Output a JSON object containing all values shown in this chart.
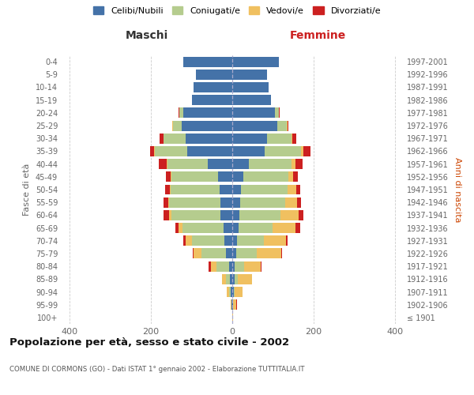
{
  "age_groups": [
    "100+",
    "95-99",
    "90-94",
    "85-89",
    "80-84",
    "75-79",
    "70-74",
    "65-69",
    "60-64",
    "55-59",
    "50-54",
    "45-49",
    "40-44",
    "35-39",
    "30-34",
    "25-29",
    "20-24",
    "15-19",
    "10-14",
    "5-9",
    "0-4"
  ],
  "birth_years": [
    "≤ 1901",
    "1902-1906",
    "1907-1911",
    "1912-1916",
    "1917-1921",
    "1922-1926",
    "1927-1931",
    "1932-1936",
    "1937-1941",
    "1942-1946",
    "1947-1951",
    "1952-1956",
    "1957-1961",
    "1962-1966",
    "1967-1971",
    "1972-1976",
    "1977-1981",
    "1982-1986",
    "1987-1991",
    "1992-1996",
    "1997-2001"
  ],
  "colors": {
    "celibi": "#4472a8",
    "coniugati": "#b5cc8e",
    "vedovi": "#f0c060",
    "divorziati": "#cc2020"
  },
  "males": {
    "celibi": [
      0,
      2,
      3,
      5,
      8,
      15,
      20,
      22,
      30,
      30,
      32,
      35,
      60,
      110,
      115,
      125,
      120,
      100,
      95,
      90,
      120
    ],
    "coniugati": [
      0,
      0,
      5,
      10,
      30,
      60,
      80,
      100,
      120,
      125,
      120,
      115,
      100,
      80,
      55,
      20,
      10,
      0,
      0,
      0,
      0
    ],
    "vedovi": [
      0,
      2,
      5,
      10,
      15,
      20,
      15,
      10,
      5,
      3,
      2,
      2,
      2,
      2,
      0,
      2,
      0,
      0,
      0,
      0,
      0
    ],
    "divorziati": [
      0,
      0,
      0,
      0,
      5,
      3,
      5,
      8,
      15,
      12,
      12,
      12,
      18,
      10,
      8,
      0,
      2,
      0,
      0,
      0,
      0
    ]
  },
  "females": {
    "nubili": [
      0,
      2,
      3,
      5,
      5,
      10,
      12,
      15,
      18,
      20,
      22,
      28,
      40,
      80,
      85,
      110,
      105,
      95,
      90,
      85,
      115
    ],
    "coniugati": [
      0,
      0,
      3,
      8,
      25,
      50,
      65,
      85,
      100,
      110,
      115,
      110,
      105,
      90,
      60,
      25,
      10,
      0,
      0,
      0,
      0
    ],
    "vedovi": [
      2,
      8,
      20,
      35,
      40,
      60,
      55,
      55,
      45,
      30,
      20,
      12,
      10,
      5,
      2,
      2,
      0,
      0,
      0,
      0,
      0
    ],
    "divorziati": [
      0,
      2,
      0,
      0,
      2,
      2,
      5,
      12,
      12,
      10,
      10,
      12,
      18,
      18,
      10,
      2,
      2,
      0,
      0,
      0,
      0
    ]
  },
  "xlim": 420,
  "title": "Popolazione per età, sesso e stato civile - 2002",
  "subtitle": "COMUNE DI CORMONS (GO) - Dati ISTAT 1° gennaio 2002 - Elaborazione TUTTITALIA.IT",
  "xlabel_left": "Maschi",
  "xlabel_right": "Femmine",
  "ylabel_left": "Fasce di età",
  "ylabel_right": "Anni di nascita",
  "legend_labels": [
    "Celibi/Nubili",
    "Coniugati/e",
    "Vedovi/e",
    "Divorziati/e"
  ],
  "background_color": "#ffffff",
  "grid_color": "#cccccc"
}
